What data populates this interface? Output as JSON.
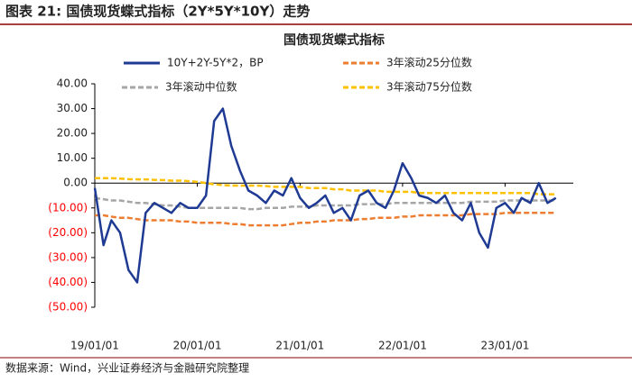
{
  "header": "图表 21:  国债现货蝶式指标（2Y*5Y*10Y）走势",
  "source": "数据来源：Wind，兴业证券经济与金融研究院整理",
  "chart_data": {
    "type": "line",
    "title": "国债现货蝶式指标",
    "x": [
      "2019-01-01",
      "2019-02-01",
      "2019-03-01",
      "2019-04-01",
      "2019-05-01",
      "2019-06-01",
      "2019-07-01",
      "2019-08-01",
      "2019-09-01",
      "2019-10-01",
      "2019-11-01",
      "2019-12-01",
      "2020-01-01",
      "2020-02-01",
      "2020-03-01",
      "2020-04-01",
      "2020-05-01",
      "2020-06-01",
      "2020-07-01",
      "2020-08-01",
      "2020-09-01",
      "2020-10-01",
      "2020-11-01",
      "2020-12-01",
      "2021-01-01",
      "2021-02-01",
      "2021-03-01",
      "2021-04-01",
      "2021-05-01",
      "2021-06-01",
      "2021-07-01",
      "2021-08-01",
      "2021-09-01",
      "2021-10-01",
      "2021-11-01",
      "2021-12-01",
      "2022-01-01",
      "2022-02-01",
      "2022-03-01",
      "2022-04-01",
      "2022-05-01",
      "2022-06-01",
      "2022-07-01",
      "2022-08-01",
      "2022-09-01",
      "2022-10-01",
      "2022-11-01",
      "2022-12-01",
      "2023-01-01",
      "2023-02-01",
      "2023-03-01",
      "2023-04-01",
      "2023-05-01",
      "2023-06-01",
      "2023-07-01"
    ],
    "series": [
      {
        "name": "10Y+2Y-5Y*2，BP",
        "color": "#1f3a93",
        "style": "solid",
        "values": [
          -2,
          -25,
          -15,
          -20,
          -35,
          -40,
          -12,
          -8,
          -10,
          -12,
          -8,
          -10,
          -10,
          -5,
          25,
          30,
          15,
          5,
          -3,
          -5,
          -8,
          -3,
          -5,
          2,
          -6,
          -10,
          -8,
          -5,
          -12,
          -10,
          -15,
          -5,
          -3,
          -8,
          -10,
          -3,
          8,
          2,
          -5,
          -6,
          -8,
          -5,
          -12,
          -15,
          -8,
          -20,
          -26,
          -10,
          -8,
          -12,
          -6,
          -8,
          0,
          -8,
          -6
        ]
      },
      {
        "name": "3年滚动25分位数",
        "color": "#ed7d31",
        "style": "dashed",
        "values": [
          -13,
          -13,
          -13.5,
          -14,
          -14,
          -14.5,
          -15,
          -15,
          -15,
          -15,
          -15.5,
          -15.5,
          -16,
          -16,
          -16,
          -16,
          -16.5,
          -16.5,
          -17,
          -17,
          -17,
          -17,
          -17,
          -16.5,
          -16,
          -16,
          -15.5,
          -15.5,
          -15,
          -15,
          -15,
          -14.5,
          -14.5,
          -14,
          -14,
          -14,
          -13.5,
          -13.5,
          -13,
          -13,
          -13,
          -13,
          -13,
          -13,
          -12.5,
          -12.5,
          -12.5,
          -12.5,
          -12,
          -12,
          -12,
          -12,
          -12,
          -12,
          -12
        ]
      },
      {
        "name": "3年滚动中位数",
        "color": "#a6a6a6",
        "style": "dashed",
        "values": [
          -6,
          -6.5,
          -7,
          -7,
          -7.5,
          -8,
          -8,
          -8.5,
          -9,
          -9,
          -9.5,
          -10,
          -10,
          -10,
          -10,
          -10,
          -10,
          -10,
          -10.5,
          -10.5,
          -10,
          -10,
          -10,
          -9.5,
          -9.5,
          -9.5,
          -9,
          -9,
          -9,
          -9,
          -9,
          -8.5,
          -8.5,
          -8.5,
          -8.5,
          -8,
          -8,
          -8,
          -8,
          -8,
          -8,
          -8,
          -8,
          -8,
          -7.5,
          -7.5,
          -7.5,
          -7.5,
          -7,
          -7,
          -7,
          -7,
          -7,
          -7,
          -7
        ]
      },
      {
        "name": "3年滚动75分位数",
        "color": "#ffc000",
        "style": "dashed",
        "values": [
          2,
          2,
          2,
          1.8,
          1.6,
          1.5,
          1.5,
          1.3,
          1.2,
          1,
          1,
          0.8,
          0.5,
          0,
          -0.5,
          -0.8,
          -1,
          -1,
          -1,
          -1,
          -1.2,
          -1.5,
          -1.5,
          -1.5,
          -1.5,
          -2,
          -2,
          -2,
          -2.5,
          -2.5,
          -3,
          -3,
          -3,
          -3,
          -3.5,
          -3.5,
          -3.5,
          -3.5,
          -4,
          -4,
          -4,
          -4,
          -4,
          -4,
          -4,
          -4,
          -4,
          -4,
          -4,
          -4,
          -4,
          -4,
          -4.5,
          -4.5,
          -4.5
        ]
      }
    ],
    "xlim": [
      "2019-01-01",
      "2023-09-01"
    ],
    "xticks": [
      {
        "value": "2019-01-01",
        "label": "19/01/01"
      },
      {
        "value": "2020-01-01",
        "label": "20/01/01"
      },
      {
        "value": "2021-01-01",
        "label": "21/01/01"
      },
      {
        "value": "2022-01-01",
        "label": "22/01/01"
      },
      {
        "value": "2023-01-01",
        "label": "23/01/01"
      }
    ],
    "ylim": [
      -50,
      40
    ],
    "yticks": [
      {
        "value": 40,
        "label": "40.00"
      },
      {
        "value": 30,
        "label": "30.00"
      },
      {
        "value": 20,
        "label": "20.00"
      },
      {
        "value": 10,
        "label": "10.00"
      },
      {
        "value": 0,
        "label": "0.00"
      },
      {
        "value": -10,
        "label": "(10.00)"
      },
      {
        "value": -20,
        "label": "(20.00)"
      },
      {
        "value": -30,
        "label": "(30.00)"
      },
      {
        "value": -40,
        "label": "(40.00)"
      },
      {
        "value": -50,
        "label": "(50.00)"
      }
    ],
    "negative_tick_color": "#ff0000",
    "grid": false
  }
}
